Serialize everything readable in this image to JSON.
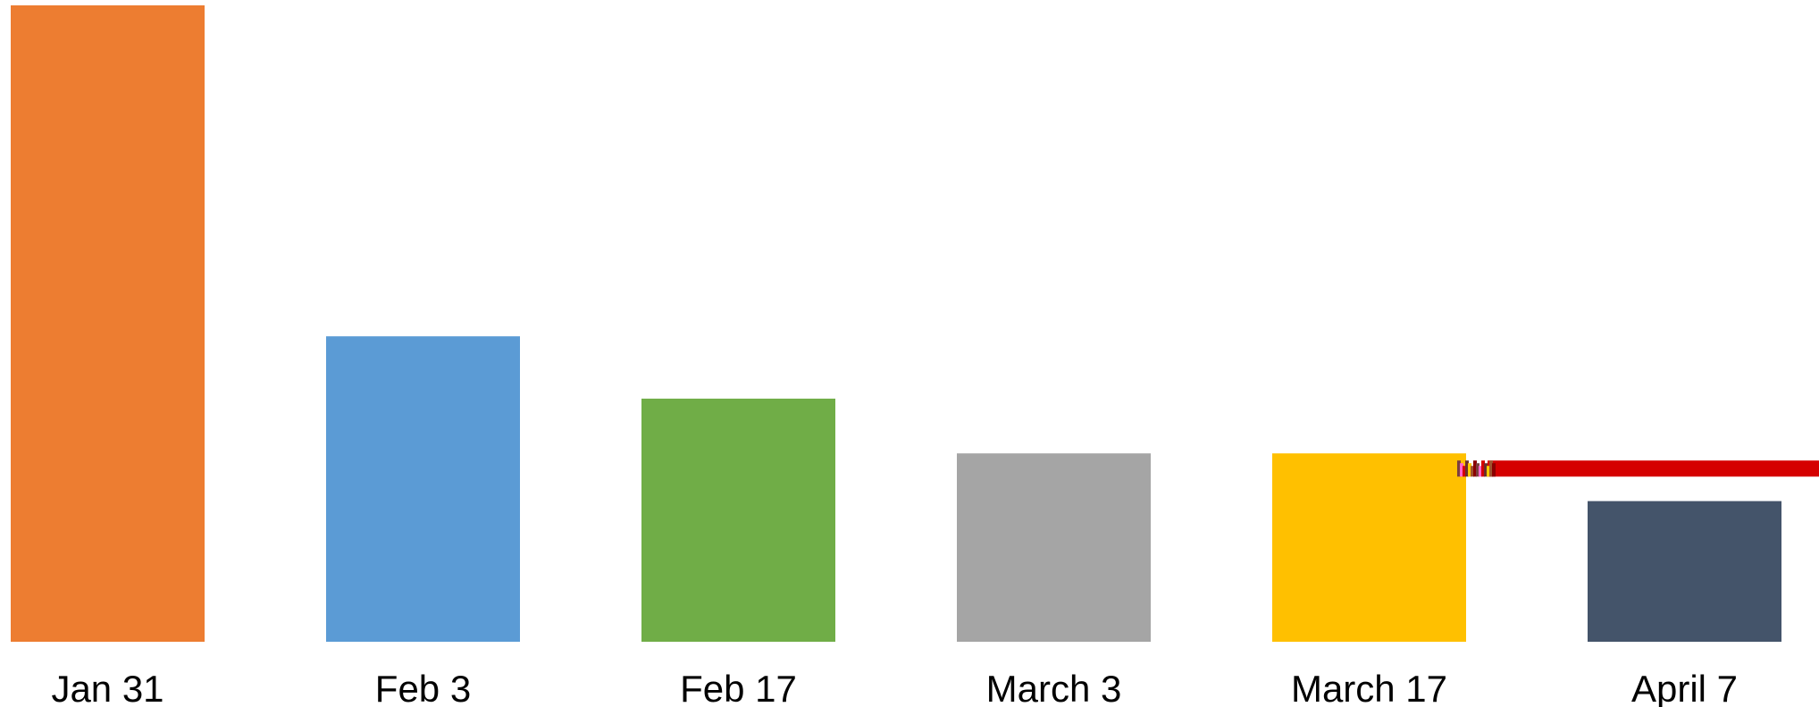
{
  "chart_data": {
    "type": "bar",
    "categories": [
      "Jan 31",
      "Feb 3",
      "Feb 17",
      "March 3",
      "March 17",
      "April 7"
    ],
    "values": [
      100,
      48,
      38.2,
      29.6,
      29.6,
      22.1
    ],
    "colors": [
      "#ED7D31",
      "#5B9BD5",
      "#70AD47",
      "#A5A5A5",
      "#FFC000",
      "#44546A"
    ],
    "title": "",
    "xlabel": "",
    "ylabel": "",
    "ylim": [
      0,
      100
    ],
    "grid": false,
    "legend": "none",
    "annotation": {
      "type": "horizontal-line",
      "y": 29.6,
      "color": "#D50000",
      "description": "red reference line starting near March 17 bar"
    }
  }
}
